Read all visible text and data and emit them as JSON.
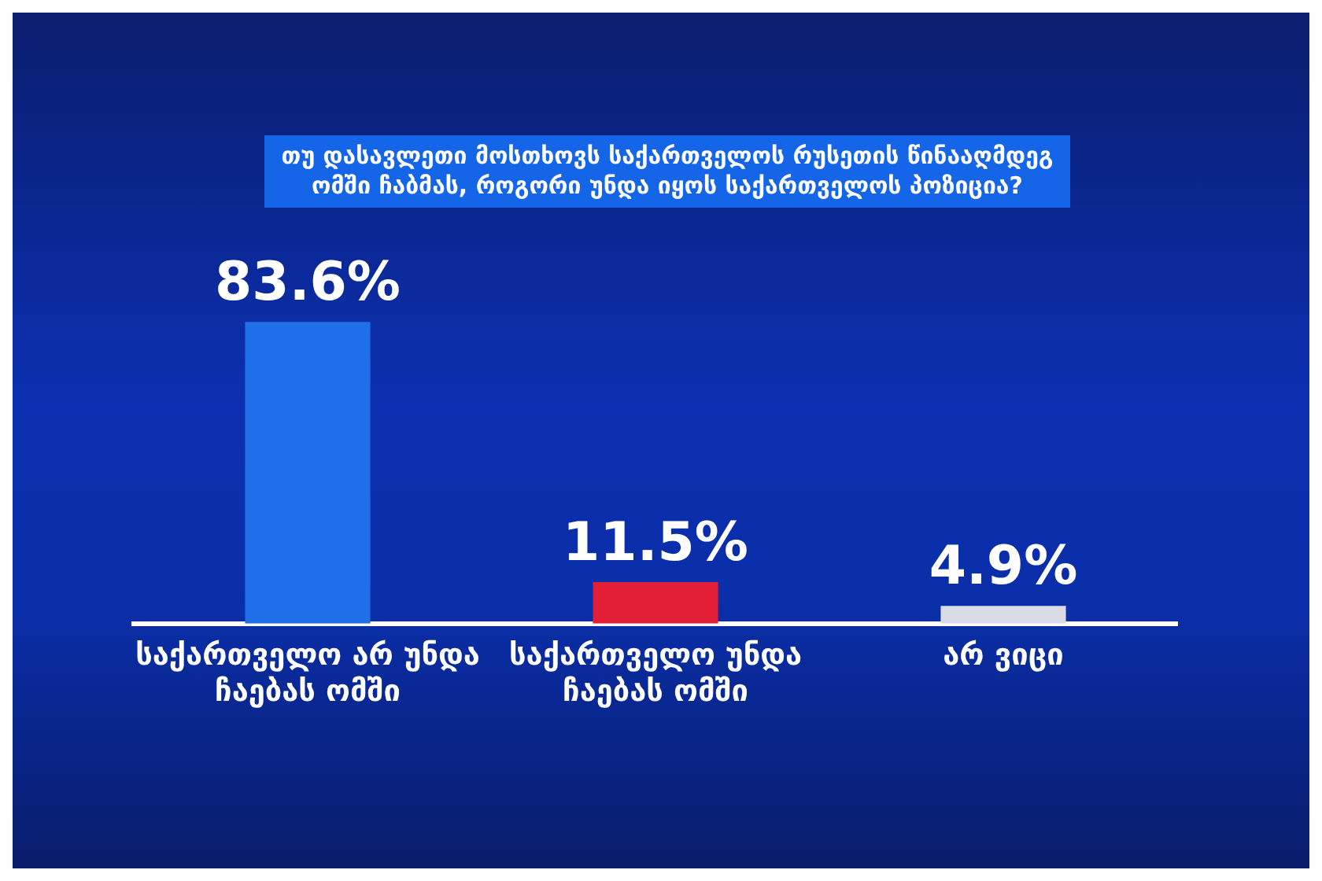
{
  "chart_data": {
    "type": "bar",
    "title": "თუ დასავლეთი მოსთხოვს საქართველოს რუსეთის წინააღმდეგ ომში ჩაბმას, როგორი უნდა იყოს საქართველოს პოზიცია?",
    "categories": [
      "საქართველო არ უნდა ჩაებას ომში",
      "საქართველო უნდა ჩაებას ომში",
      "არ ვიცი"
    ],
    "values": [
      83.6,
      11.5,
      4.9
    ],
    "colors": [
      "#1f6fe8",
      "#e21f36",
      "#d9dbe6"
    ],
    "value_labels": [
      "83.6%",
      "11.5%",
      "4.9%"
    ],
    "grid": false,
    "legend": false
  }
}
